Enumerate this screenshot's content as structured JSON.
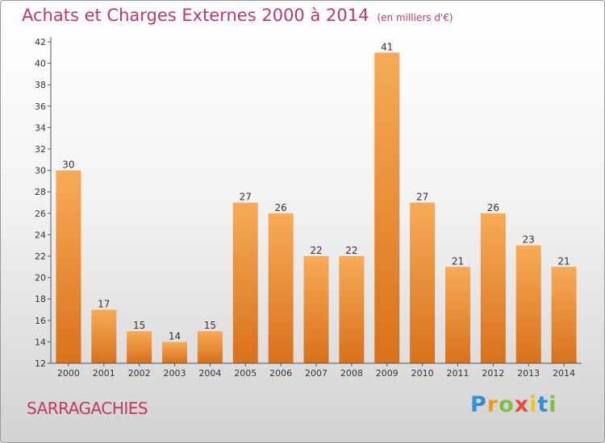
{
  "chart_data": {
    "type": "bar",
    "title": "Achats et Charges Externes 2000 à 2014",
    "subtitle": "(en milliers d'€)",
    "categories": [
      "2000",
      "2001",
      "2002",
      "2003",
      "2004",
      "2005",
      "2006",
      "2007",
      "2008",
      "2009",
      "2010",
      "2011",
      "2012",
      "2013",
      "2014"
    ],
    "values": [
      30,
      17,
      15,
      14,
      15,
      27,
      26,
      22,
      22,
      41,
      27,
      21,
      26,
      23,
      21
    ],
    "ylim": [
      12,
      42
    ],
    "yticks": [
      12,
      14,
      16,
      18,
      20,
      22,
      24,
      26,
      28,
      30,
      32,
      34,
      36,
      38,
      40,
      42
    ],
    "grid": false,
    "bar_color": "#f0922e",
    "bar_color_top": "#f7ab58",
    "bar_color_bottom": "#d9711a"
  },
  "commune": "SARRAGACHIES",
  "logo": {
    "letters": [
      "P",
      "r",
      "o",
      "x",
      "i",
      "t",
      "i"
    ],
    "colors": [
      "#2f8fd8",
      "#f29a1e",
      "#7fbf3a",
      "#e84c3d",
      "#f2c21e",
      "#2f8fd8",
      "#7fbf3a"
    ]
  }
}
